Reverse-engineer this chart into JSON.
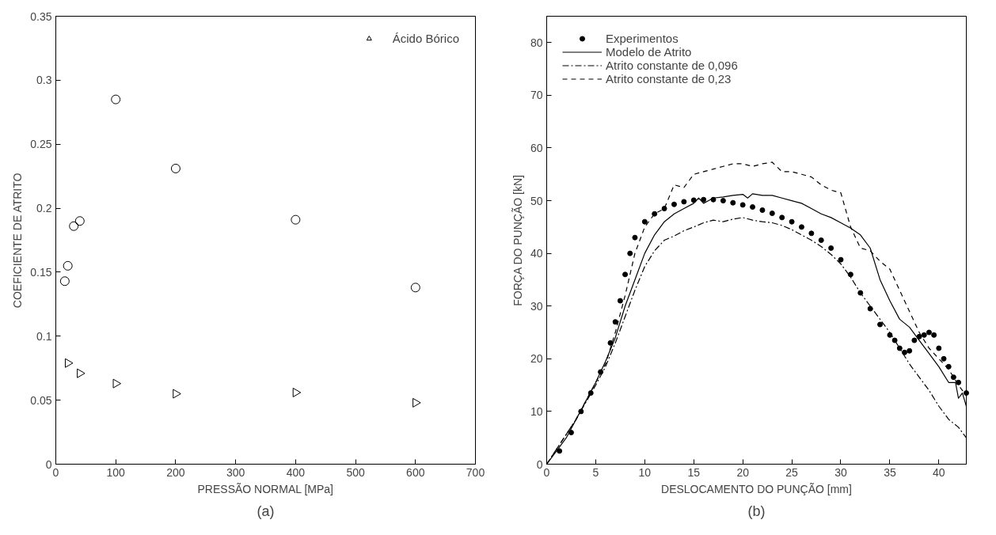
{
  "chart_data": [
    {
      "type": "scatter",
      "xlabel": "PRESSÃO NORMAL [MPa]",
      "ylabel": "COEFICIENTE DE ATRITO",
      "xlim": [
        0,
        700
      ],
      "xticks": [
        0,
        100,
        200,
        300,
        400,
        500,
        600,
        700
      ],
      "ylim": [
        0,
        0.35
      ],
      "yticks": [
        0,
        0.05,
        0.1,
        0.15,
        0.2,
        0.25,
        0.3,
        0.35
      ],
      "grid": false,
      "legend": "top right",
      "annotations": [
        "(a)"
      ],
      "series": [
        {
          "color": "#000000",
          "marker": "circle",
          "x": [
            15,
            20,
            30,
            40,
            100,
            200,
            400,
            600
          ],
          "values": [
            0.143,
            0.155,
            0.186,
            0.19,
            0.285,
            0.231,
            0.191,
            0.138
          ]
        },
        {
          "name": "Ácido Bórico",
          "color": "#000000",
          "marker": "triangle",
          "x": [
            20,
            40,
            100,
            200,
            400,
            600
          ],
          "values": [
            0.079,
            0.071,
            0.063,
            0.055,
            0.056,
            0.048
          ]
        }
      ]
    },
    {
      "type": "line",
      "xlabel": "DESLOCAMENTO DO PUNÇÃO [mm]",
      "ylabel": "FORÇA DO PUNÇÃO [kN]",
      "xlim": [
        0,
        42.8
      ],
      "xticks": [
        0,
        5,
        10,
        15,
        20,
        25,
        30,
        35,
        40
      ],
      "ylim": [
        0,
        85
      ],
      "yticks": [
        0,
        10,
        20,
        30,
        40,
        50,
        60,
        70,
        80
      ],
      "grid": false,
      "legend": "top left",
      "annotations": [
        "(b)"
      ],
      "series": [
        {
          "name": "Experimentos",
          "type": "scatter",
          "marker": "circle",
          "color": "#000000",
          "x": [
            1.3,
            2.5,
            3.5,
            4.5,
            5.5,
            6.5,
            7,
            7.5,
            8,
            8.5,
            9,
            10,
            11,
            12,
            13,
            14,
            15,
            16,
            17,
            18,
            19,
            20,
            21,
            22,
            23,
            24,
            25,
            26,
            27,
            28,
            29,
            30,
            31,
            32,
            33,
            34,
            35,
            35.5,
            36,
            36.5,
            37,
            37.5,
            38,
            38.5,
            39,
            39.5,
            40,
            40.5,
            41,
            41.5,
            42,
            42.8
          ],
          "values": [
            2.5,
            6,
            10,
            13.5,
            17.5,
            23,
            27,
            31,
            36,
            40,
            43,
            46,
            47.5,
            48.5,
            49.3,
            49.8,
            50.1,
            50.2,
            50.2,
            50,
            49.6,
            49.2,
            48.8,
            48.2,
            47.6,
            46.8,
            46,
            45,
            43.8,
            42.5,
            41,
            38.8,
            36,
            32.5,
            29.5,
            26.5,
            24.5,
            23.5,
            22,
            21.2,
            21.5,
            23.5,
            24.2,
            24.5,
            25,
            24.5,
            22,
            20,
            18.5,
            16.5,
            15.5,
            13.5
          ]
        },
        {
          "name": "Modelo de Atrito",
          "line_style": "solid",
          "color": "#000000",
          "x": [
            0,
            1,
            2,
            3,
            4,
            5,
            6,
            7,
            8,
            9,
            10,
            11,
            12,
            13,
            14,
            15,
            15.5,
            16,
            17,
            18,
            19,
            20,
            20.5,
            21,
            22,
            23,
            24,
            25,
            26,
            27,
            28,
            29,
            30,
            31,
            32,
            33,
            34,
            35,
            36,
            37,
            38,
            39,
            40,
            41,
            41.7,
            42,
            42.4,
            42.8
          ],
          "values": [
            0,
            2.5,
            5,
            8.5,
            12,
            15.5,
            19.5,
            24,
            30,
            35,
            40,
            43.5,
            46,
            47.5,
            48.5,
            49.5,
            50.5,
            49.5,
            50.5,
            50.7,
            51,
            51.2,
            50.5,
            51.3,
            51,
            51,
            50.5,
            50,
            49.5,
            48.5,
            47.5,
            46.8,
            45.8,
            44.8,
            43.5,
            41,
            35,
            31,
            27.5,
            26,
            23.5,
            21,
            18.5,
            15.5,
            15.5,
            12.5,
            13.5,
            11
          ]
        },
        {
          "name": "Atrito constante de 0,096",
          "line_style": "dashdot",
          "color": "#000000",
          "x": [
            0,
            3,
            5,
            6,
            7,
            8,
            9,
            10,
            11,
            12,
            13,
            14,
            15,
            16,
            17,
            18,
            19,
            20,
            21,
            22,
            23,
            24,
            25,
            26,
            27,
            28,
            29,
            30,
            31,
            32,
            33,
            34,
            35,
            36,
            37,
            38,
            39,
            40,
            41,
            42,
            42.8
          ],
          "values": [
            0,
            8.5,
            15,
            18.5,
            23,
            28,
            33,
            37.5,
            40.5,
            42.5,
            43.3,
            44.3,
            45,
            45.8,
            46.3,
            46,
            46.5,
            46.8,
            46.3,
            46,
            45.8,
            45.3,
            44.5,
            43.5,
            42.5,
            41.3,
            39.8,
            38,
            35.5,
            32.5,
            30,
            27.5,
            25,
            22,
            19,
            16.5,
            14,
            11,
            8.5,
            7,
            5
          ]
        },
        {
          "name": "Atrito constante de 0,23",
          "line_style": "dashed",
          "color": "#000000",
          "x": [
            0,
            3,
            5,
            6,
            7,
            8,
            9,
            10,
            11,
            12,
            13,
            14,
            15,
            16,
            17,
            18,
            19,
            20,
            21,
            22,
            23,
            24,
            25,
            26,
            27,
            28,
            29,
            30,
            31,
            32,
            33,
            34,
            35,
            36,
            37,
            38,
            39,
            40,
            41,
            42,
            42.8
          ],
          "values": [
            0,
            8.5,
            15.5,
            19,
            25,
            32,
            40,
            45,
            47.5,
            48.5,
            53,
            52.5,
            55,
            55.5,
            56,
            56.5,
            57,
            57,
            56.5,
            57,
            57.3,
            55.5,
            55.5,
            55,
            54.5,
            53,
            52,
            51.5,
            45,
            41,
            40.5,
            38.5,
            37,
            33,
            29,
            25,
            22,
            20,
            18,
            15,
            13
          ]
        }
      ]
    }
  ]
}
